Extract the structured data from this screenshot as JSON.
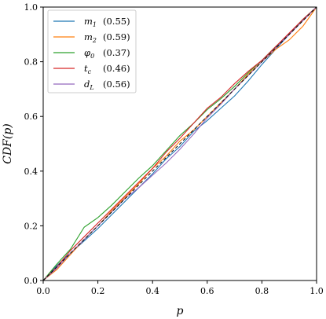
{
  "chart_data": {
    "type": "line",
    "title": "",
    "xlabel": "p",
    "ylabel": "CDF(p)",
    "xlim": [
      0,
      1
    ],
    "ylim": [
      0,
      1
    ],
    "xticks": [
      "0.0",
      "0.2",
      "0.4",
      "0.6",
      "0.8",
      "1.0"
    ],
    "yticks": [
      "0.0",
      "0.2",
      "0.4",
      "0.6",
      "0.8",
      "1.0"
    ],
    "grid": false,
    "legend_position": "top-left",
    "diagonal": {
      "style": "dashed",
      "color": "#000000",
      "x": [
        0,
        1
      ],
      "y": [
        0,
        1
      ]
    },
    "series": [
      {
        "name": "m1",
        "legend_text": "(0.55)",
        "color": "#1f77b4",
        "x": [
          0,
          0.05,
          0.1,
          0.15,
          0.2,
          0.25,
          0.3,
          0.35,
          0.4,
          0.45,
          0.5,
          0.55,
          0.6,
          0.65,
          0.7,
          0.75,
          0.8,
          0.85,
          0.9,
          0.95,
          1
        ],
        "y": [
          0,
          0.055,
          0.1,
          0.145,
          0.19,
          0.24,
          0.29,
          0.34,
          0.39,
          0.445,
          0.49,
          0.545,
          0.585,
          0.63,
          0.675,
          0.73,
          0.79,
          0.845,
          0.9,
          0.955,
          1
        ]
      },
      {
        "name": "m2",
        "legend_text": "(0.59)",
        "color": "#ff7f0e",
        "x": [
          0,
          0.05,
          0.1,
          0.15,
          0.2,
          0.25,
          0.3,
          0.35,
          0.4,
          0.45,
          0.5,
          0.55,
          0.6,
          0.65,
          0.7,
          0.75,
          0.8,
          0.85,
          0.9,
          0.95,
          1
        ],
        "y": [
          0,
          0.04,
          0.095,
          0.15,
          0.2,
          0.255,
          0.305,
          0.355,
          0.41,
          0.455,
          0.51,
          0.55,
          0.6,
          0.65,
          0.7,
          0.755,
          0.8,
          0.845,
          0.88,
          0.93,
          1
        ]
      },
      {
        "name": "φ0",
        "legend_text": "(0.37)",
        "color": "#2ca02c",
        "x": [
          0,
          0.05,
          0.1,
          0.15,
          0.2,
          0.25,
          0.3,
          0.35,
          0.4,
          0.45,
          0.5,
          0.55,
          0.6,
          0.65,
          0.7,
          0.75,
          0.8,
          0.85,
          0.9,
          0.95,
          1
        ],
        "y": [
          0,
          0.06,
          0.115,
          0.195,
          0.23,
          0.275,
          0.325,
          0.375,
          0.42,
          0.475,
          0.53,
          0.575,
          0.625,
          0.665,
          0.71,
          0.76,
          0.805,
          0.855,
          0.9,
          0.955,
          1
        ]
      },
      {
        "name": "tc",
        "legend_text": "(0.46)",
        "color": "#d62728",
        "x": [
          0,
          0.05,
          0.1,
          0.15,
          0.2,
          0.25,
          0.3,
          0.35,
          0.4,
          0.45,
          0.5,
          0.55,
          0.6,
          0.65,
          0.7,
          0.75,
          0.8,
          0.85,
          0.9,
          0.95,
          1
        ],
        "y": [
          0,
          0.05,
          0.11,
          0.16,
          0.21,
          0.26,
          0.31,
          0.36,
          0.41,
          0.47,
          0.52,
          0.575,
          0.63,
          0.67,
          0.72,
          0.765,
          0.805,
          0.855,
          0.905,
          0.955,
          1
        ]
      },
      {
        "name": "dL",
        "legend_text": "(0.56)",
        "color": "#9467bd",
        "x": [
          0,
          0.05,
          0.1,
          0.15,
          0.2,
          0.25,
          0.3,
          0.35,
          0.4,
          0.45,
          0.5,
          0.55,
          0.6,
          0.65,
          0.7,
          0.75,
          0.8,
          0.85,
          0.9,
          0.95,
          1
        ],
        "y": [
          0,
          0.045,
          0.1,
          0.15,
          0.2,
          0.25,
          0.3,
          0.34,
          0.385,
          0.43,
          0.48,
          0.535,
          0.595,
          0.645,
          0.7,
          0.75,
          0.8,
          0.85,
          0.9,
          0.95,
          1
        ]
      }
    ]
  }
}
